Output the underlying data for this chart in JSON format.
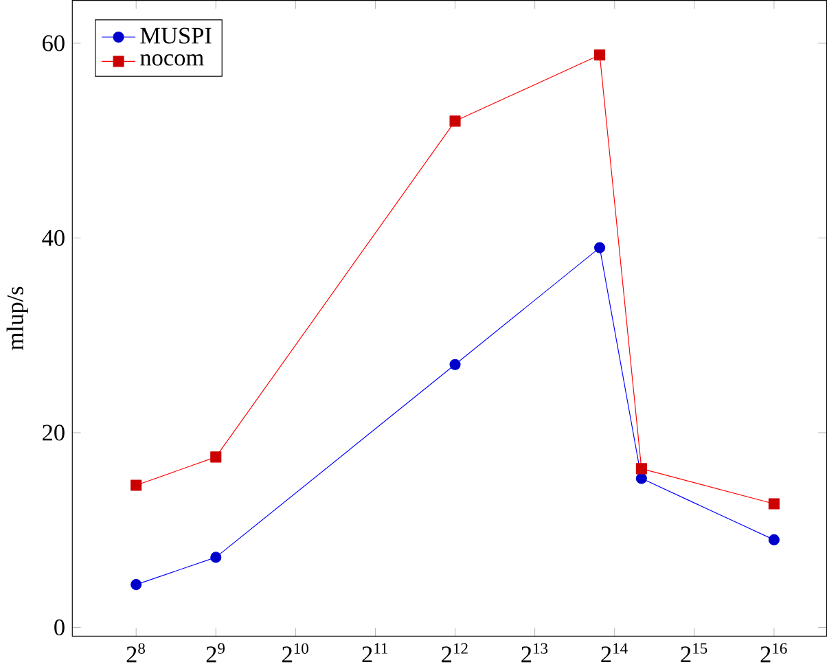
{
  "chart_data": {
    "type": "line",
    "ylabel": "mlup/s",
    "log": "x",
    "xlim": [
      147,
      103500
    ],
    "ylim": [
      -0.9,
      64.4
    ],
    "xticks": [
      {
        "value": 256,
        "label": "2$^{8}$"
      },
      {
        "value": 512,
        "label": "2$^{9}$"
      },
      {
        "value": 1024,
        "label": "2$^{10}$"
      },
      {
        "value": 2048,
        "label": "2$^{11}$"
      },
      {
        "value": 4096,
        "label": "2$^{12}$"
      },
      {
        "value": 8192,
        "label": "2$^{13}$"
      },
      {
        "value": 16384,
        "label": "2$^{14}$"
      },
      {
        "value": 32768,
        "label": "2$^{15}$"
      },
      {
        "value": 65536,
        "label": "2$^{16}$"
      }
    ],
    "yticks": [
      0,
      20,
      40,
      60
    ],
    "x": [
      256,
      512,
      4096,
      14400,
      20700,
      65536
    ],
    "legend": "top left",
    "series": [
      {
        "name": "MUSPI",
        "color": "#0000ff",
        "marker": "circle",
        "values": [
          4.4,
          7.2,
          27,
          39,
          15.3,
          9
        ]
      },
      {
        "name": "nocom",
        "color": "#ff0000",
        "marker": "square",
        "values": [
          14.6,
          17.5,
          52,
          58.8,
          16.3,
          12.7
        ]
      }
    ]
  }
}
